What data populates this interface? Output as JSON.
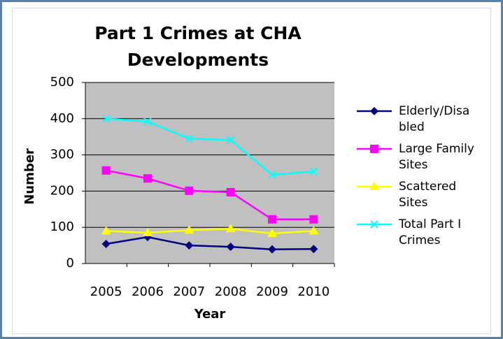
{
  "chart_data": {
    "type": "line",
    "title": "Part 1 Crimes at CHA Developments",
    "x_label": "Year",
    "y_label": "Number",
    "categories": [
      "2005",
      "2006",
      "2007",
      "2008",
      "2009",
      "2010"
    ],
    "series": [
      {
        "name": "Elderly/Disabled",
        "color": "#000080",
        "marker": "diamond",
        "values": [
          54,
          73,
          50,
          46,
          39,
          40
        ]
      },
      {
        "name": "Large Family Sites",
        "color": "#ff00ff",
        "marker": "square",
        "values": [
          257,
          235,
          201,
          197,
          122,
          122
        ]
      },
      {
        "name": "Scattered Sites",
        "color": "#ffff00",
        "marker": "triangle",
        "values": [
          90,
          85,
          92,
          96,
          83,
          90
        ]
      },
      {
        "name": "Total Part I Crimes",
        "color": "#00ffff",
        "marker": "x",
        "values": [
          400,
          392,
          345,
          341,
          245,
          254
        ]
      }
    ],
    "ylim": [
      0,
      500
    ],
    "yticks": [
      0,
      100,
      200,
      300,
      400,
      500
    ],
    "grid": true,
    "legend": "right"
  }
}
